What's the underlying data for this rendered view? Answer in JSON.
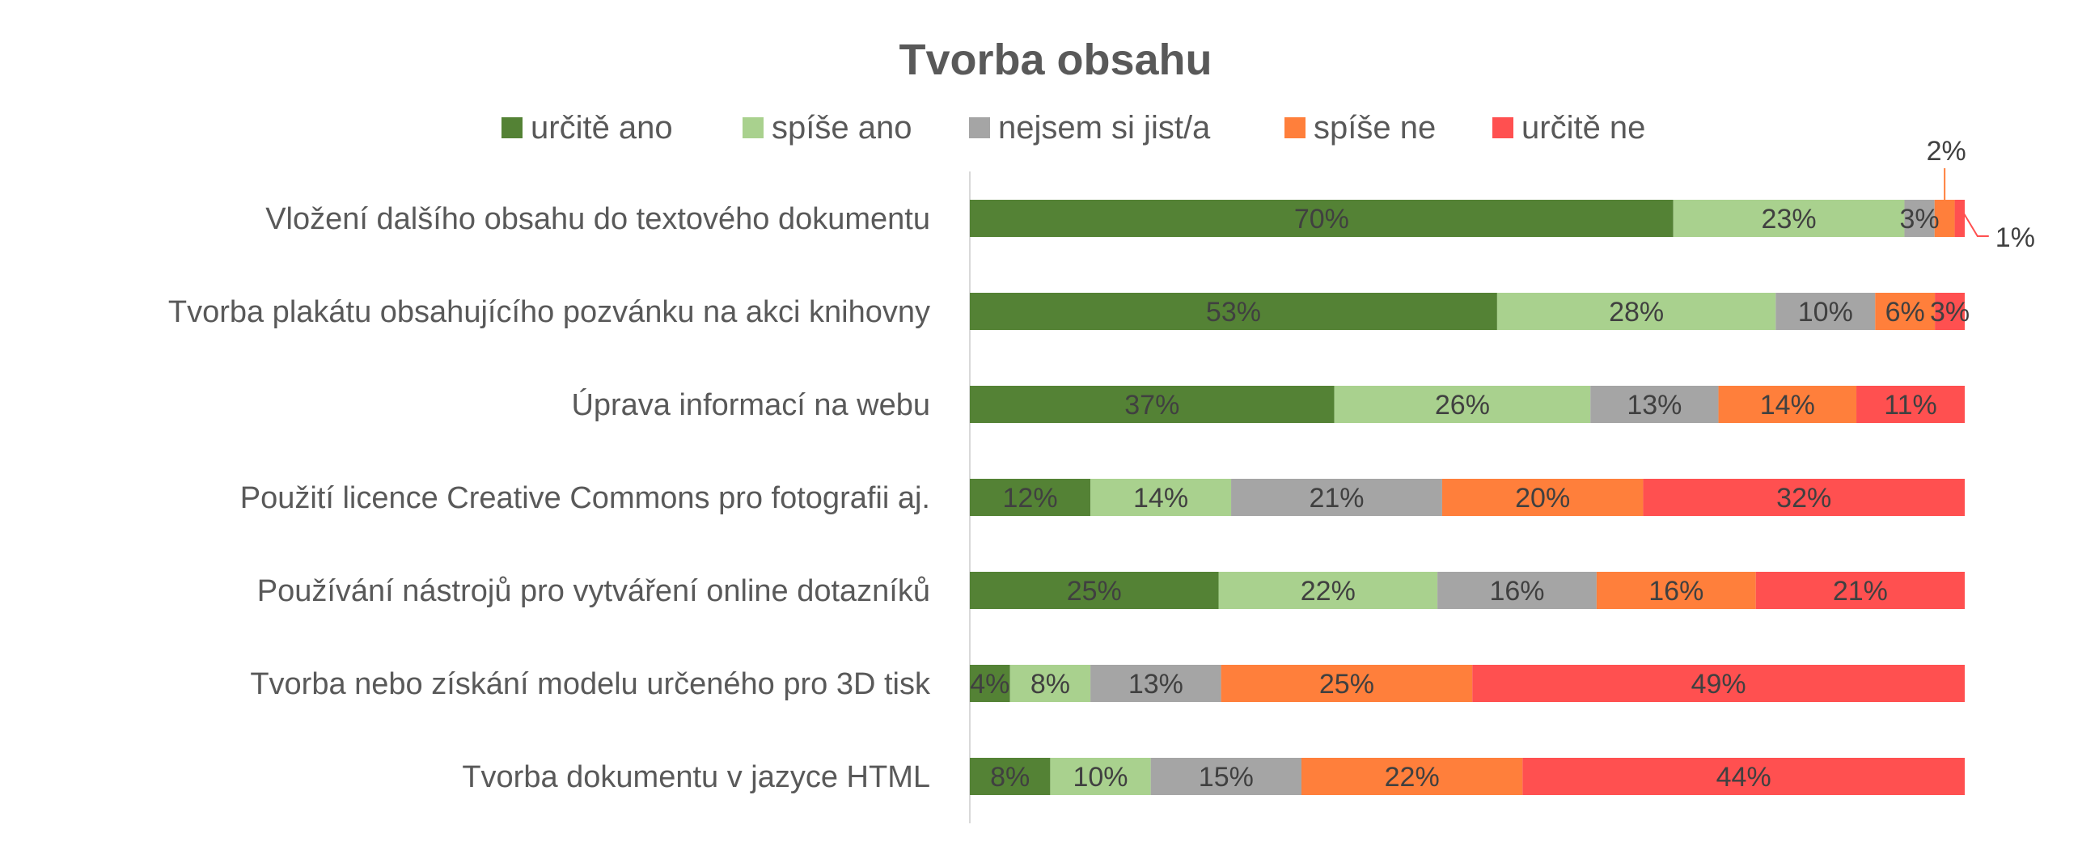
{
  "chart_data": {
    "type": "bar",
    "orientation": "horizontal",
    "stacked": true,
    "title": "Tvorba obsahu",
    "xlabel": "",
    "ylabel": "",
    "legend_position": "top",
    "grid": false,
    "categories": [
      "Vložení dalšího obsahu do textového dokumentu",
      "Tvorba plakátu obsahujícího pozvánku na akci knihovny",
      "Úprava informací na webu",
      "Použití licence Creative Commons pro fotografii aj.",
      "Používání nástrojů  pro vytváření online dotazníků",
      "Tvorba nebo získání modelu určeného pro 3D tisk",
      "Tvorba dokumentu v jazyce HTML"
    ],
    "series": [
      {
        "name": "určitě ano",
        "color": "#548235",
        "values": [
          70,
          53,
          37,
          12,
          25,
          4,
          8
        ]
      },
      {
        "name": "spíše ano",
        "color": "#A9D18E",
        "values": [
          23,
          28,
          26,
          14,
          22,
          8,
          10
        ]
      },
      {
        "name": "nejsem si jist/a",
        "color": "#A5A5A5",
        "values": [
          3,
          10,
          13,
          21,
          16,
          13,
          15
        ]
      },
      {
        "name": "spíše ne",
        "color": "#FF7F3B",
        "values": [
          2,
          6,
          14,
          20,
          16,
          25,
          22
        ]
      },
      {
        "name": "určitě ne",
        "color": "#FF5050",
        "values": [
          1,
          3,
          11,
          32,
          21,
          49,
          44
        ]
      }
    ],
    "value_suffix": "%"
  }
}
